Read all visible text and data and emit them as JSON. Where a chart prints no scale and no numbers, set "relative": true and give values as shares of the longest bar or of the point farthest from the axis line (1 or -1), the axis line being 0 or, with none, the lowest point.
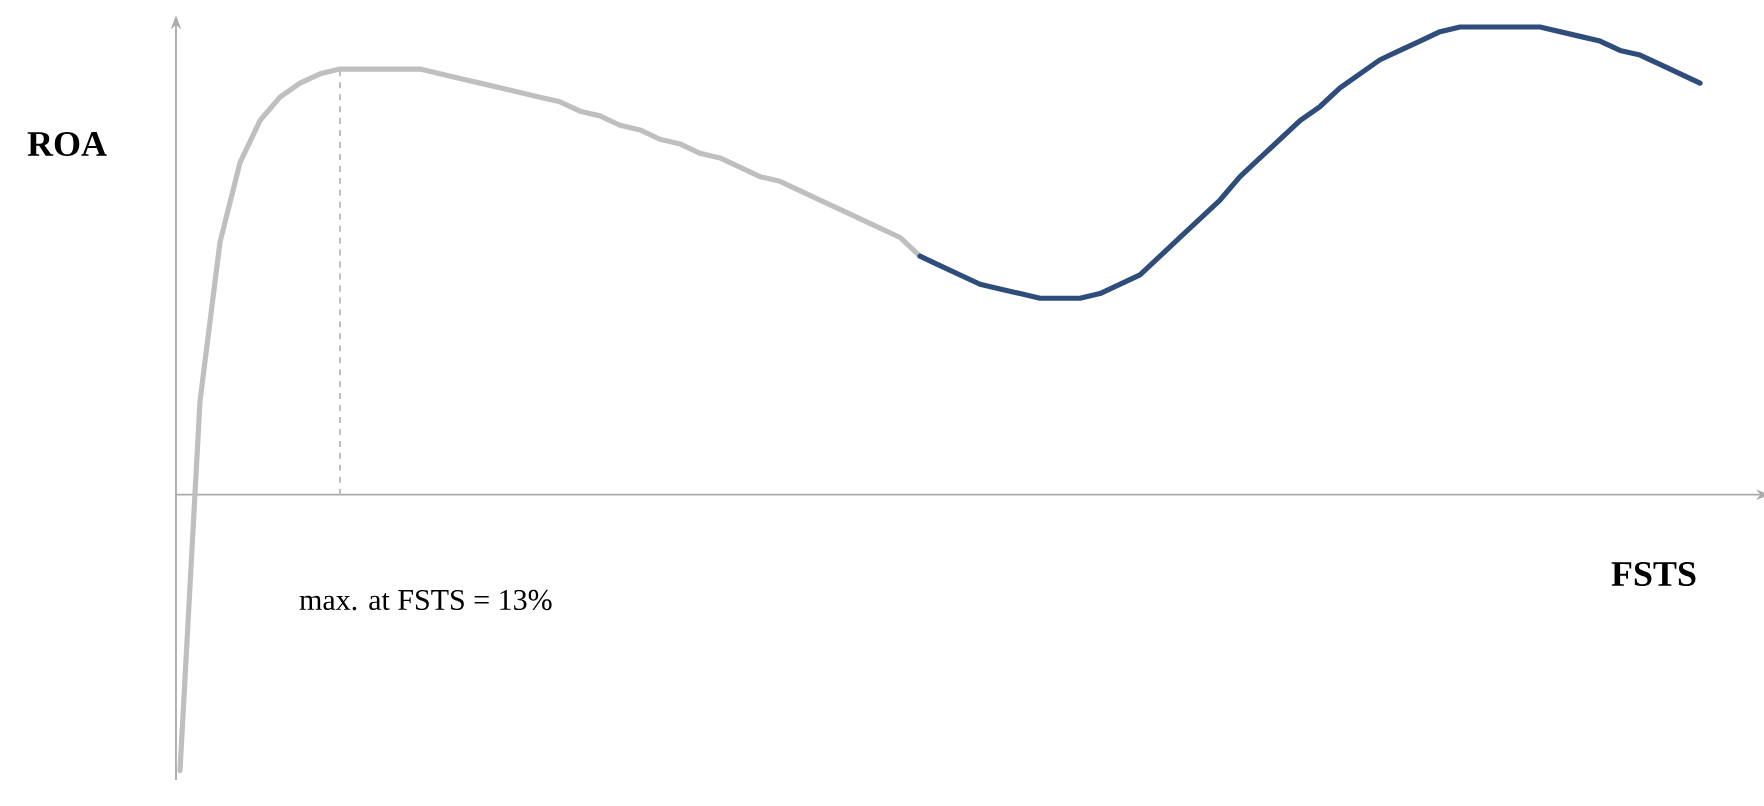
{
  "chart_data": {
    "type": "line",
    "relative": true,
    "xlabel": "FSTS",
    "ylabel": "ROA",
    "annotations": [
      "max. at FSTS = 13%"
    ],
    "categories": [
      null,
      null,
      null,
      null,
      null,
      null,
      null,
      null,
      null,
      null,
      null,
      null,
      null,
      null,
      null,
      null,
      null,
      null,
      null,
      null,
      null,
      null,
      null,
      null,
      null,
      null,
      null,
      null,
      null,
      null,
      null,
      null,
      null,
      null,
      null,
      null,
      null,
      null,
      null,
      null,
      null,
      null,
      null,
      null,
      null,
      null,
      null,
      null,
      null,
      null,
      null,
      null,
      null,
      null,
      null,
      null,
      null,
      null,
      null,
      null,
      null,
      null,
      null,
      null,
      null,
      null,
      null,
      null,
      null,
      null,
      null,
      null,
      null,
      null,
      null,
      null,
      null
    ],
    "series": [
      {
        "color": "#bfbfbf",
        "values": [
          -0.59,
          0.2,
          0.54,
          0.71,
          0.8,
          0.85,
          0.88,
          0.9,
          0.91,
          0.91,
          0.91,
          0.91,
          0.91,
          0.9,
          0.89,
          0.88,
          0.87,
          0.86,
          0.85,
          0.84,
          0.82,
          0.81,
          0.79,
          0.78,
          0.76,
          0.75,
          0.73,
          0.72,
          0.7,
          0.68,
          0.67,
          0.65,
          0.63,
          0.61,
          0.59,
          0.57,
          0.55,
          0.51,
          null,
          null,
          null,
          null,
          null,
          null,
          null,
          null,
          null,
          null,
          null,
          null,
          null,
          null,
          null,
          null,
          null,
          null,
          null,
          null,
          null,
          null,
          null,
          null,
          null,
          null,
          null,
          null,
          null,
          null,
          null,
          null,
          null,
          null,
          null,
          null,
          null,
          null,
          null
        ]
      },
      {
        "color": "#2e4d7b",
        "values": [
          null,
          null,
          null,
          null,
          null,
          null,
          null,
          null,
          null,
          null,
          null,
          null,
          null,
          null,
          null,
          null,
          null,
          null,
          null,
          null,
          null,
          null,
          null,
          null,
          null,
          null,
          null,
          null,
          null,
          null,
          null,
          null,
          null,
          null,
          null,
          null,
          null,
          0.51,
          0.49,
          0.47,
          0.45,
          0.44,
          0.43,
          0.42,
          0.42,
          0.42,
          0.43,
          0.45,
          0.47,
          0.51,
          0.55,
          0.59,
          0.63,
          0.68,
          0.72,
          0.76,
          0.8,
          0.83,
          0.87,
          0.9,
          0.93,
          0.95,
          0.97,
          0.99,
          1.0,
          1.0,
          1.0,
          1.0,
          1.0,
          0.99,
          0.98,
          0.97,
          0.95,
          0.94,
          0.92,
          0.9,
          0.88
        ]
      }
    ],
    "marker": "none",
    "line_style": "solid"
  }
}
